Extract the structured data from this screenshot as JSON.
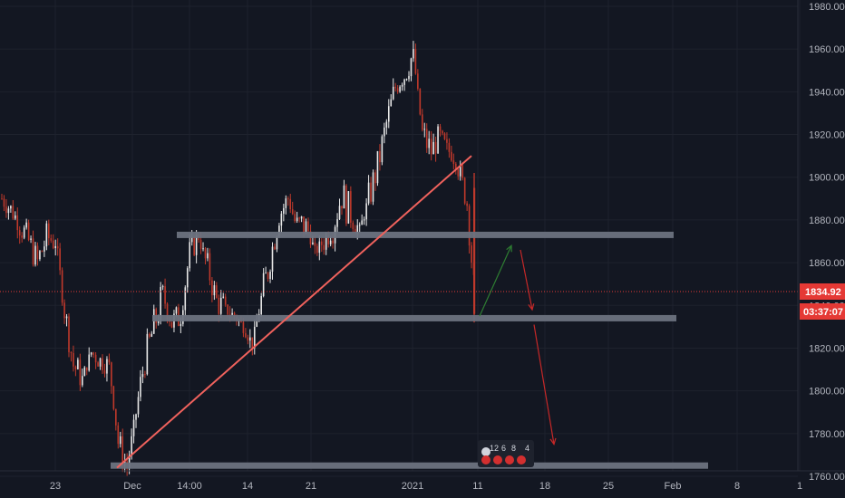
{
  "colors": {
    "background": "#131722",
    "grid": "#1e222d",
    "text": "#b2b5be",
    "candle_up": "#e8e8e8",
    "candle_down": "#c0392b",
    "trendline": "#f0625d",
    "zone": "#6b7280",
    "projection_up": "#2e7d32",
    "projection_down": "#c62828",
    "price_tag": "#e53935"
  },
  "chart_data": {
    "type": "candlestick",
    "title": "",
    "xlabel": "",
    "ylabel": "",
    "ylim": [
      1748,
      1986
    ],
    "y_ticks": [
      "1980.00",
      "1960.00",
      "1940.00",
      "1920.00",
      "1900.00",
      "1880.00",
      "1860.00",
      "1840.00",
      "1820.00",
      "1800.00",
      "1780.00",
      "1760.00"
    ],
    "x_ticks": [
      "23",
      "Dec",
      "14:00",
      "14",
      "21",
      "2021",
      "11",
      "18",
      "25",
      "Feb",
      "8",
      "1"
    ],
    "price_path": [
      [
        1890,
        1892
      ],
      [
        1885,
        1887
      ],
      [
        1878,
        1882
      ],
      [
        1870,
        1874
      ],
      [
        1860,
        1865
      ],
      [
        1872,
        1876
      ],
      [
        1870,
        1872
      ],
      [
        1838,
        1842
      ],
      [
        1812,
        1816
      ],
      [
        1806,
        1806
      ],
      [
        1818,
        1820
      ],
      [
        1814,
        1816
      ],
      [
        1812,
        1812
      ],
      [
        1776,
        1780
      ],
      [
        1764,
        1764
      ],
      [
        1790,
        1795
      ],
      [
        1815,
        1820
      ],
      [
        1830,
        1836
      ],
      [
        1845,
        1848
      ],
      [
        1832,
        1836
      ],
      [
        1835,
        1837
      ],
      [
        1865,
        1868
      ],
      [
        1872,
        1872
      ],
      [
        1858,
        1862
      ],
      [
        1842,
        1846
      ],
      [
        1838,
        1838
      ],
      [
        1835,
        1835
      ],
      [
        1830,
        1830
      ],
      [
        1822,
        1822
      ],
      [
        1842,
        1848
      ],
      [
        1862,
        1866
      ],
      [
        1882,
        1885
      ],
      [
        1890,
        1890
      ],
      [
        1876,
        1882
      ],
      [
        1878,
        1878
      ],
      [
        1865,
        1865
      ],
      [
        1870,
        1873
      ],
      [
        1877,
        1882
      ],
      [
        1892,
        1898
      ],
      [
        1882,
        1885
      ],
      [
        1875,
        1875
      ],
      [
        1890,
        1895
      ],
      [
        1905,
        1910
      ],
      [
        1925,
        1930
      ],
      [
        1942,
        1944
      ],
      [
        1948,
        1952
      ],
      [
        1958,
        1958
      ],
      [
        1920,
        1925
      ],
      [
        1912,
        1915
      ],
      [
        1920,
        1920
      ],
      [
        1912,
        1912
      ],
      [
        1905,
        1908
      ],
      [
        1888,
        1892
      ],
      [
        1836,
        1836
      ]
    ],
    "last_price": "1834.92",
    "countdown": "03:37:07",
    "trendline": {
      "from": [
        1764,
        "Nov 30"
      ],
      "to": [
        1910,
        "Jan 8"
      ]
    },
    "zones": [
      {
        "level": 1873
      },
      {
        "level": 1834
      },
      {
        "level": 1765
      }
    ],
    "projection": [
      {
        "direction": "up",
        "from": 1835,
        "to": 1868
      },
      {
        "direction": "down",
        "from": 1866,
        "to": 1838
      },
      {
        "direction": "down",
        "from": 1831,
        "to": 1775
      }
    ],
    "events": [
      "12",
      "6",
      "8",
      "4"
    ]
  }
}
